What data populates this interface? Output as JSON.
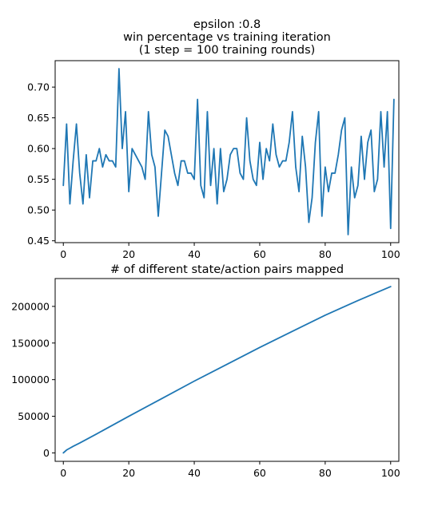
{
  "figure": {
    "title_lines": [
      "epsilon :0.8",
      "win percentage vs training iteration",
      "(1 step = 100 training rounds)"
    ]
  },
  "chart_data": [
    {
      "type": "line",
      "title": "",
      "xlabel": "",
      "ylabel": "",
      "xlim": [
        -2.5,
        102.5
      ],
      "ylim": [
        0.447,
        0.743
      ],
      "xticks": [
        0,
        20,
        40,
        60,
        80,
        100
      ],
      "xtick_labels": [
        "0",
        "20",
        "40",
        "60",
        "80",
        "100"
      ],
      "yticks": [
        0.45,
        0.5,
        0.55,
        0.6,
        0.65,
        0.7
      ],
      "ytick_labels": [
        "0.45",
        "0.50",
        "0.55",
        "0.60",
        "0.65",
        "0.70"
      ],
      "grid": false,
      "color": "#1f77b4",
      "x_start": 0,
      "x_step": 1,
      "y": [
        0.54,
        0.64,
        0.51,
        0.58,
        0.64,
        0.56,
        0.51,
        0.59,
        0.52,
        0.58,
        0.58,
        0.6,
        0.57,
        0.59,
        0.58,
        0.58,
        0.57,
        0.73,
        0.6,
        0.66,
        0.53,
        0.6,
        0.59,
        0.58,
        0.57,
        0.55,
        0.66,
        0.59,
        0.57,
        0.49,
        0.56,
        0.63,
        0.62,
        0.59,
        0.56,
        0.54,
        0.58,
        0.58,
        0.56,
        0.56,
        0.55,
        0.68,
        0.54,
        0.52,
        0.66,
        0.54,
        0.6,
        0.51,
        0.6,
        0.53,
        0.55,
        0.59,
        0.6,
        0.6,
        0.56,
        0.55,
        0.65,
        0.58,
        0.55,
        0.54,
        0.61,
        0.55,
        0.6,
        0.58,
        0.64,
        0.59,
        0.57,
        0.58,
        0.58,
        0.61,
        0.66,
        0.57,
        0.53,
        0.62,
        0.57,
        0.48,
        0.52,
        0.61,
        0.66,
        0.49,
        0.57,
        0.53,
        0.56,
        0.56,
        0.59,
        0.63,
        0.65,
        0.46,
        0.57,
        0.52,
        0.54,
        0.62,
        0.55,
        0.61,
        0.63,
        0.53,
        0.55,
        0.66,
        0.57,
        0.66,
        0.47,
        0.68
      ]
    },
    {
      "type": "line",
      "title": "# of different state/action pairs mapped",
      "xlabel": "",
      "ylabel": "",
      "xlim": [
        -2.5,
        102.5
      ],
      "ylim": [
        -11500,
        238000
      ],
      "xticks": [
        0,
        20,
        40,
        60,
        80,
        100
      ],
      "xtick_labels": [
        "0",
        "20",
        "40",
        "60",
        "80",
        "100"
      ],
      "yticks": [
        0,
        50000,
        100000,
        150000,
        200000
      ],
      "ytick_labels": [
        "0",
        "50000",
        "100000",
        "150000",
        "200000"
      ],
      "grid": false,
      "color": "#1f77b4",
      "x": [
        0,
        1,
        2,
        3,
        5,
        10,
        20,
        30,
        40,
        50,
        60,
        70,
        80,
        90,
        100
      ],
      "y": [
        0,
        4000,
        6500,
        9000,
        13500,
        25500,
        50000,
        74000,
        98000,
        121000,
        144000,
        166000,
        188000,
        208000,
        227000
      ]
    }
  ]
}
